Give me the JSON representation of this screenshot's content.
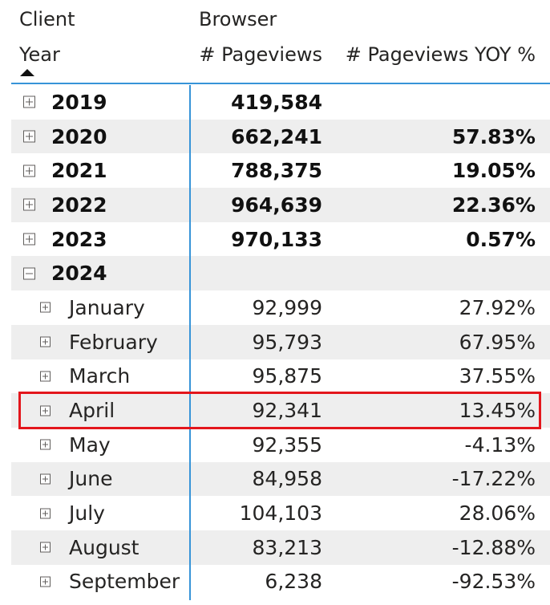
{
  "header": {
    "client_label": "Client",
    "browser_label": "Browser",
    "year_label": "Year",
    "pageviews_label": "# Pageviews",
    "yoy_label": "# Pageviews YOY %",
    "sort_icon": "sort-ascending-triangle"
  },
  "rows": [
    {
      "label": "2019",
      "pageviews": "419,584",
      "yoy": ""
    },
    {
      "label": "2020",
      "pageviews": "662,241",
      "yoy": "57.83%"
    },
    {
      "label": "2021",
      "pageviews": "788,375",
      "yoy": "19.05%"
    },
    {
      "label": "2022",
      "pageviews": "964,639",
      "yoy": "22.36%"
    },
    {
      "label": "2023",
      "pageviews": "970,133",
      "yoy": "0.57%"
    },
    {
      "label": "2024",
      "pageviews": "",
      "yoy": ""
    },
    {
      "label": "January",
      "pageviews": "92,999",
      "yoy": "27.92%"
    },
    {
      "label": "February",
      "pageviews": "95,793",
      "yoy": "67.95%"
    },
    {
      "label": "March",
      "pageviews": "95,875",
      "yoy": "37.55%"
    },
    {
      "label": "April",
      "pageviews": "92,341",
      "yoy": "13.45%"
    },
    {
      "label": "May",
      "pageviews": "92,355",
      "yoy": "-4.13%"
    },
    {
      "label": "June",
      "pageviews": "84,958",
      "yoy": "-17.22%"
    },
    {
      "label": "July",
      "pageviews": "104,103",
      "yoy": "28.06%"
    },
    {
      "label": "August",
      "pageviews": "83,213",
      "yoy": "-12.88%"
    },
    {
      "label": "September",
      "pageviews": "6,238",
      "yoy": "-92.53%"
    }
  ],
  "colors": {
    "accent_line": "#3794d8",
    "row_shade": "#eeeeee",
    "highlight_border": "#e3161c",
    "text": "#252423"
  }
}
